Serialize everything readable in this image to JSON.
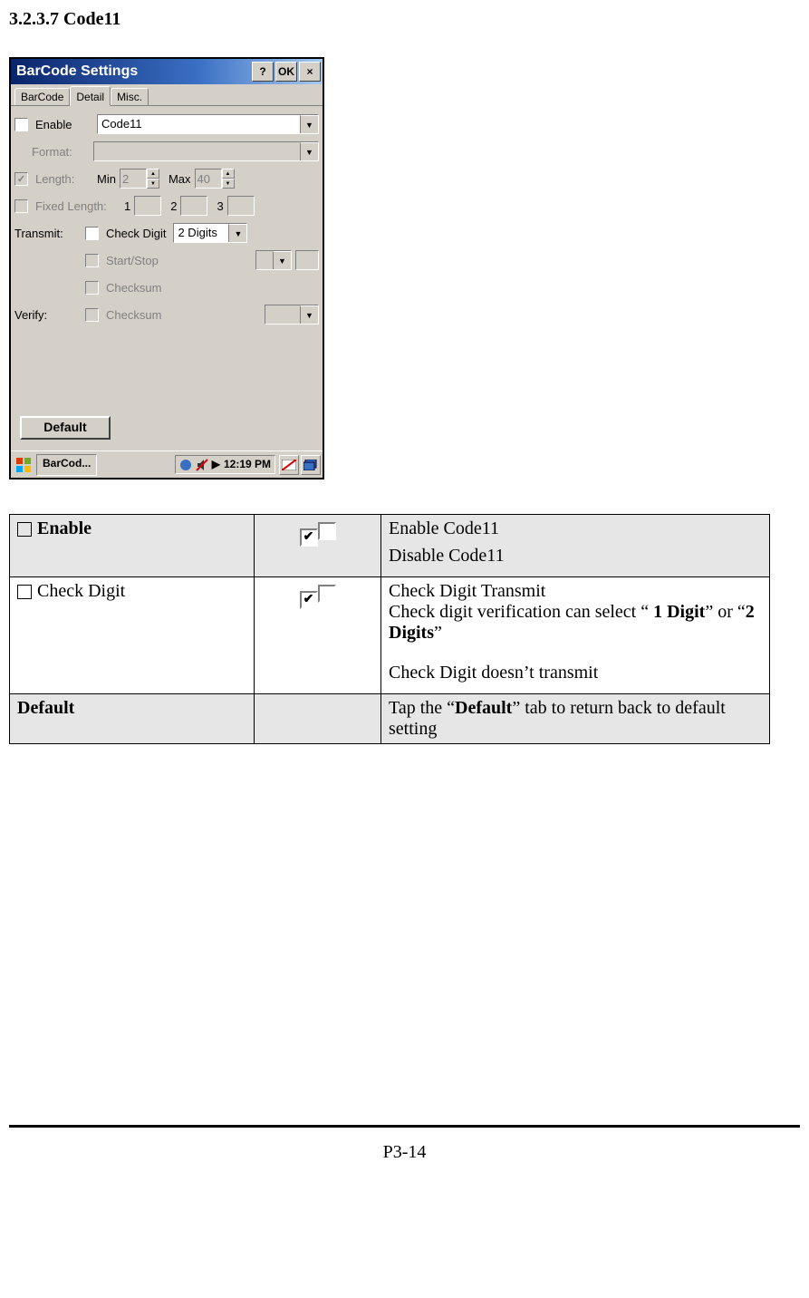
{
  "heading": "3.2.3.7 Code11",
  "window": {
    "title": "BarCode Settings",
    "titlebar_buttons": {
      "help": "?",
      "ok": "OK",
      "close": "×"
    },
    "tabs": [
      "BarCode",
      "Detail",
      "Misc."
    ],
    "active_tab": "Detail",
    "rows": {
      "enable": {
        "label": "Enable",
        "value": "Code11"
      },
      "format": {
        "label": "Format:"
      },
      "length": {
        "label": "Length:",
        "min_label": "Min",
        "min_val": "2",
        "max_label": "Max",
        "max_val": "40"
      },
      "fixed": {
        "label": "Fixed Length:",
        "n1": "1",
        "n2": "2",
        "n3": "3"
      },
      "transmit": {
        "label": "Transmit:",
        "check_digit": "Check Digit",
        "digits_val": "2 Digits",
        "startstop": "Start/Stop",
        "checksum": "Checksum"
      },
      "verify": {
        "label": "Verify:",
        "checksum": "Checksum"
      }
    },
    "default_btn": "Default",
    "taskbar": {
      "app": "BarCod...",
      "time": "12:19 PM"
    }
  },
  "table": {
    "rows": [
      {
        "shade": true,
        "col_a": {
          "checkbox": true,
          "bold": true,
          "text": "Enable"
        },
        "options": [
          {
            "checked": true,
            "text_parts": [
              {
                "t": "Enable Code11"
              }
            ]
          },
          {
            "checked": false,
            "text_parts": [
              {
                "t": "Disable Code11"
              }
            ]
          }
        ]
      },
      {
        "shade": false,
        "col_a": {
          "checkbox": true,
          "bold": false,
          "text": "Check Digit"
        },
        "options": [
          {
            "checked": true,
            "text_parts": [
              {
                "t": "Check Digit Transmit"
              },
              {
                "br": true
              },
              {
                "t": "Check digit verification can select “ "
              },
              {
                "t": "1 Digit",
                "b": true
              },
              {
                "t": "” or “"
              },
              {
                "t": "2 Digits",
                "b": true
              },
              {
                "t": "”"
              }
            ]
          },
          {
            "checked": false,
            "text_parts": [
              {
                "t": "Check Digit doesn’t transmit"
              }
            ]
          }
        ]
      },
      {
        "shade": true,
        "col_a": {
          "checkbox": false,
          "bold": true,
          "text": "Default"
        },
        "options": [
          {
            "no_icon": true,
            "text_parts": [
              {
                "t": "Tap the “"
              },
              {
                "t": "Default",
                "b": true
              },
              {
                "t": "” tab to return back to default setting"
              }
            ]
          }
        ]
      }
    ]
  },
  "footer": "P3-14"
}
